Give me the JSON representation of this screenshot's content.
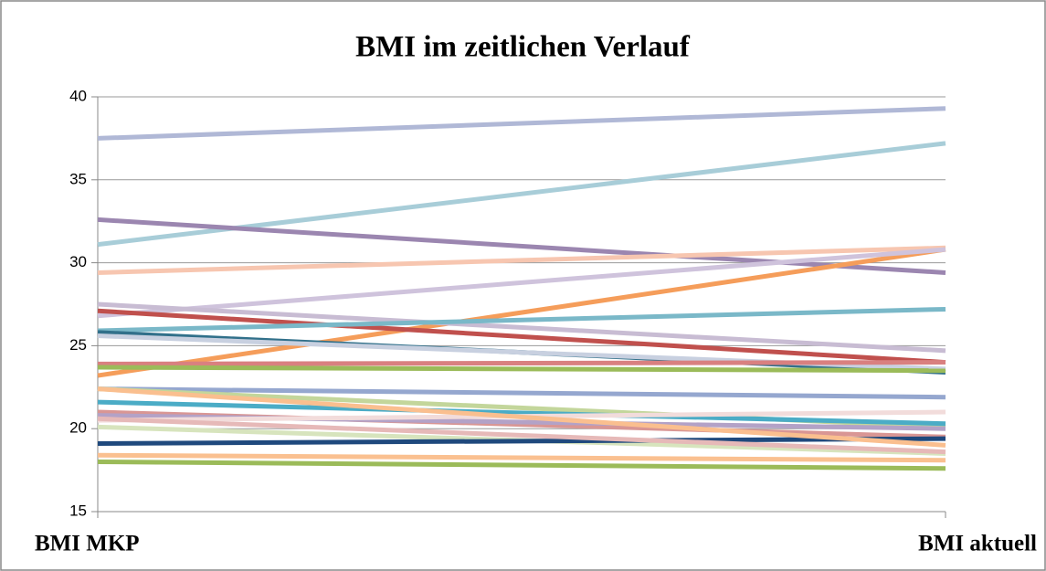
{
  "chart_data": {
    "type": "line",
    "title": "BMI im zeitlichen Verlauf",
    "categories": [
      "BMI MKP",
      "BMI aktuell"
    ],
    "ylim": [
      15,
      40
    ],
    "yticks": [
      15,
      20,
      25,
      30,
      35,
      40
    ],
    "grid": true,
    "series": [
      {
        "color": "#b0b8d6",
        "values": [
          37.5,
          39.3
        ]
      },
      {
        "color": "#a8cdd8",
        "values": [
          31.1,
          37.2
        ]
      },
      {
        "color": "#9b86b0",
        "values": [
          32.6,
          29.4
        ]
      },
      {
        "color": "#f7c6b0",
        "values": [
          29.4,
          30.9
        ]
      },
      {
        "color": "#f59d5a",
        "values": [
          23.2,
          30.8
        ]
      },
      {
        "color": "#cfc3dc",
        "values": [
          26.8,
          30.8
        ]
      },
      {
        "color": "#c8bcd3",
        "values": [
          27.5,
          24.7
        ]
      },
      {
        "color": "#c0504d",
        "values": [
          27.1,
          24.0
        ]
      },
      {
        "color": "#7ab8c8",
        "values": [
          25.9,
          27.2
        ]
      },
      {
        "color": "#31708a",
        "values": [
          25.8,
          23.4
        ]
      },
      {
        "color": "#c8d0e0",
        "values": [
          25.6,
          23.6
        ]
      },
      {
        "color": "#d98080",
        "values": [
          23.9,
          24.0
        ]
      },
      {
        "color": "#9bbb59",
        "values": [
          23.7,
          23.5
        ]
      },
      {
        "color": "#95a7cf",
        "values": [
          22.4,
          21.9
        ]
      },
      {
        "color": "#c3d69b",
        "values": [
          22.4,
          20.1
        ]
      },
      {
        "color": "#4bacc6",
        "values": [
          21.6,
          20.3
        ]
      },
      {
        "color": "#d99694",
        "values": [
          21.0,
          19.5
        ]
      },
      {
        "color": "#b3a2c7",
        "values": [
          20.8,
          20.0
        ]
      },
      {
        "color": "#f2dcdb",
        "values": [
          20.5,
          21.0
        ]
      },
      {
        "color": "#d7e4bd",
        "values": [
          20.1,
          18.5
        ]
      },
      {
        "color": "#1f497d",
        "values": [
          19.1,
          19.4
        ]
      },
      {
        "color": "#fac090",
        "values": [
          18.4,
          18.1
        ]
      },
      {
        "color": "#9bbb59",
        "values": [
          18.0,
          17.6
        ]
      },
      {
        "color": "#e6b9b8",
        "values": [
          20.6,
          18.6
        ]
      },
      {
        "color": "#fabf8f",
        "values": [
          22.4,
          19.0
        ]
      }
    ]
  }
}
